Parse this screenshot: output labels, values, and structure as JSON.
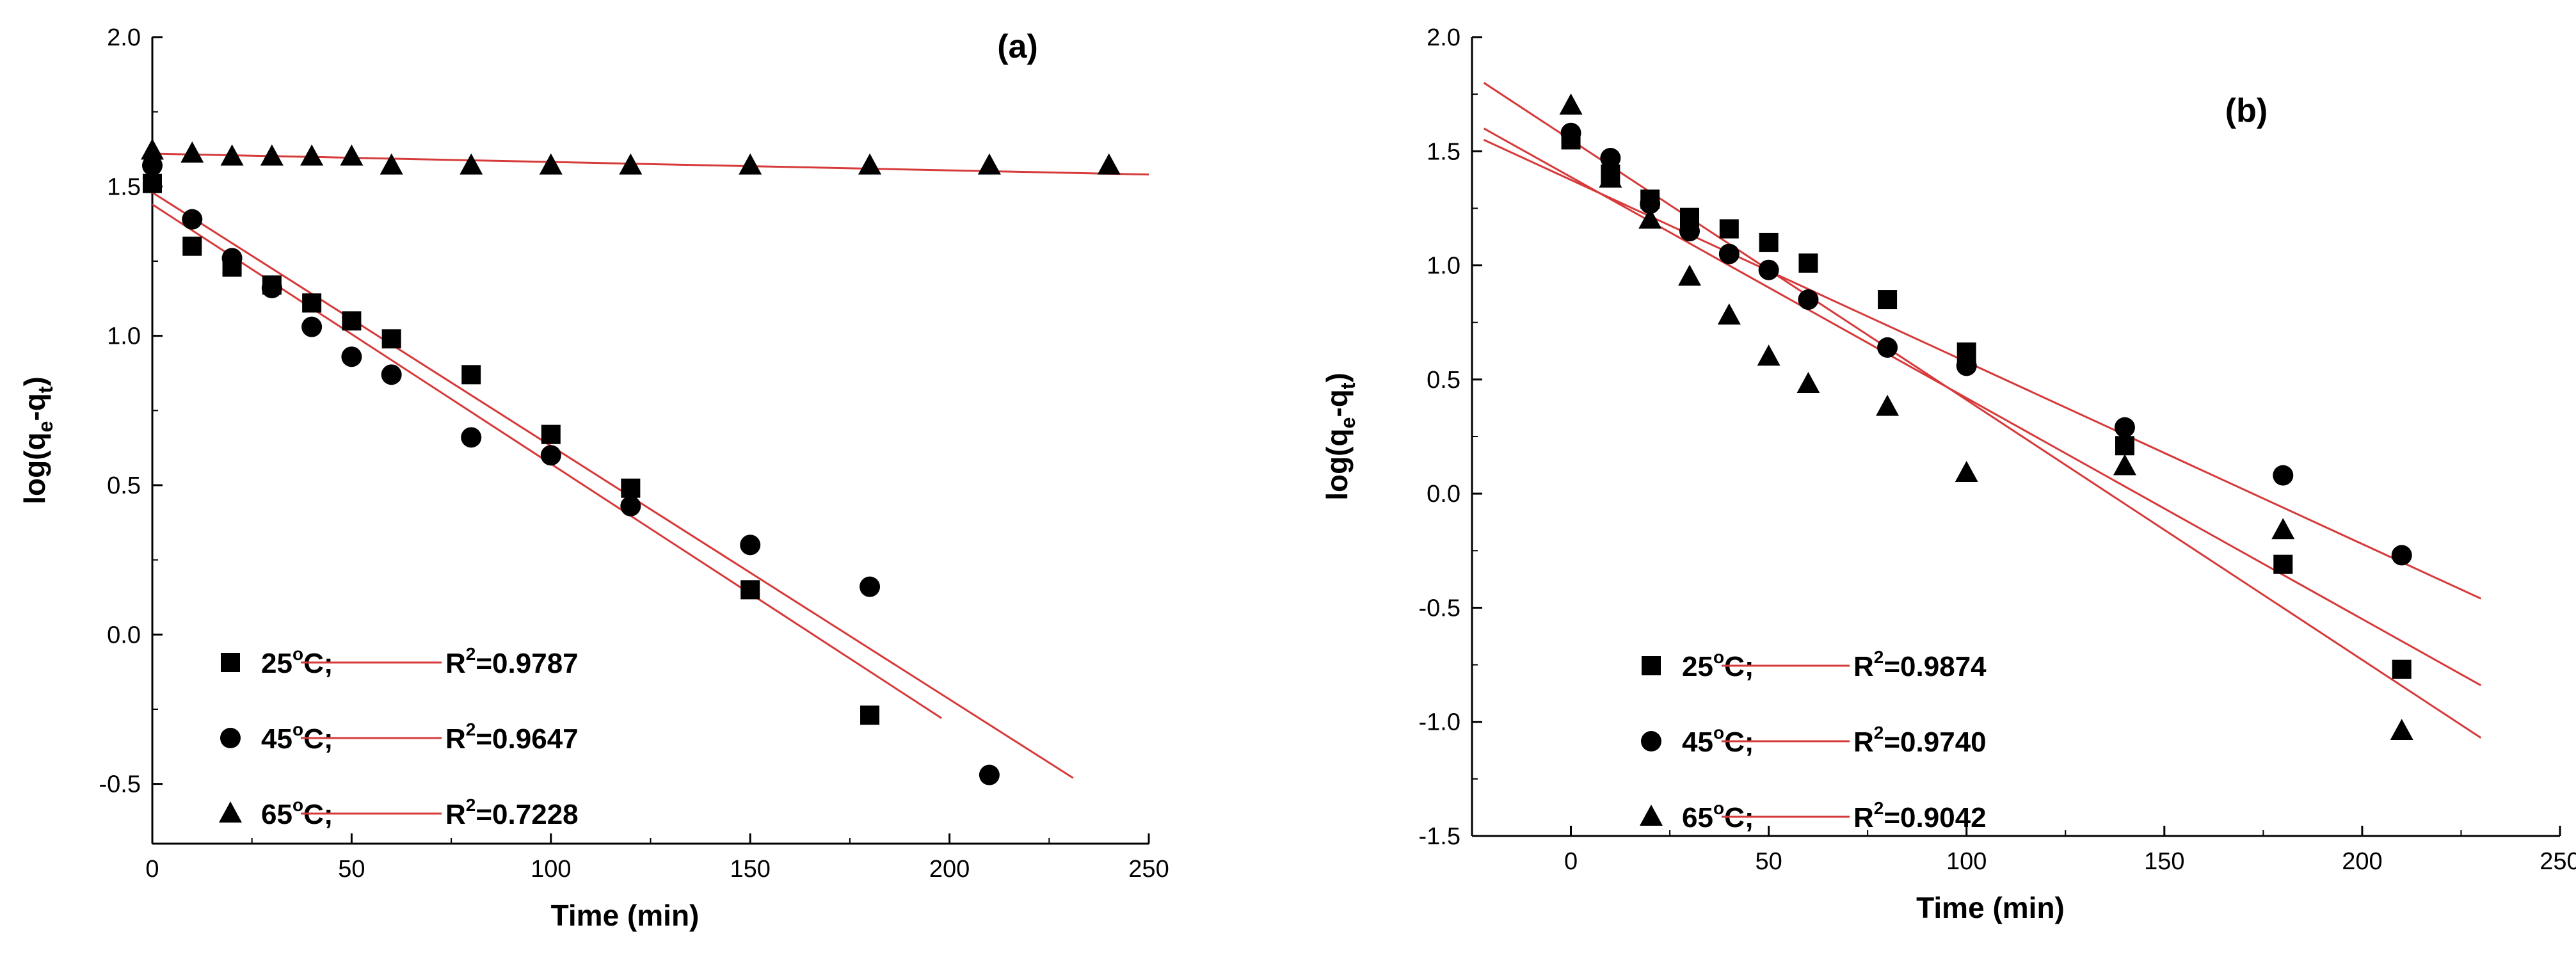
{
  "chart_data": [
    {
      "type": "scatter",
      "panel_label": "(a)",
      "xlabel": "Time (min)",
      "ylabel": "log(q",
      "ylabel_sub1": "e",
      "ylabel_mid": "-q",
      "ylabel_sub2": "t",
      "ylabel_end": ")",
      "xlim": [
        0,
        250
      ],
      "ylim": [
        -0.7,
        2.0
      ],
      "xticks": [
        0,
        50,
        100,
        150,
        200,
        250
      ],
      "xtick_labels": [
        "0",
        "50",
        "100",
        "150",
        "200",
        "250"
      ],
      "yticks": [
        -0.5,
        0.0,
        0.5,
        1.0,
        1.5,
        2.0
      ],
      "ytick_labels": [
        "-0.5",
        "0.0",
        "0.5",
        "1.0",
        "1.5",
        "2.0"
      ],
      "legend_position": "bottom-left",
      "series": [
        {
          "name": "25°C",
          "marker": "square",
          "temp": "25",
          "r2_label": "R",
          "r2_value": "=0.9787",
          "points": [
            [
              0,
              1.51
            ],
            [
              10,
              1.3
            ],
            [
              20,
              1.23
            ],
            [
              30,
              1.17
            ],
            [
              40,
              1.11
            ],
            [
              50,
              1.05
            ],
            [
              60,
              0.99
            ],
            [
              80,
              0.87
            ],
            [
              100,
              0.67
            ],
            [
              120,
              0.49
            ],
            [
              150,
              0.15
            ],
            [
              180,
              -0.27
            ]
          ],
          "fit": {
            "x": [
              0,
              198
            ],
            "y": [
              1.44,
              -0.28
            ]
          }
        },
        {
          "name": "45°C",
          "marker": "circle",
          "temp": "45",
          "r2_label": "R",
          "r2_value": "=0.9647",
          "points": [
            [
              0,
              1.57
            ],
            [
              10,
              1.39
            ],
            [
              20,
              1.26
            ],
            [
              30,
              1.16
            ],
            [
              40,
              1.03
            ],
            [
              50,
              0.93
            ],
            [
              60,
              0.87
            ],
            [
              80,
              0.66
            ],
            [
              100,
              0.6
            ],
            [
              120,
              0.43
            ],
            [
              150,
              0.3
            ],
            [
              180,
              0.16
            ],
            [
              210,
              -0.47
            ]
          ],
          "fit": {
            "x": [
              0,
              231
            ],
            "y": [
              1.48,
              -0.48
            ]
          }
        },
        {
          "name": "65°C",
          "marker": "triangle",
          "temp": "65",
          "r2_label": "R",
          "r2_value": "=0.7228",
          "points": [
            [
              0,
              1.62
            ],
            [
              10,
              1.61
            ],
            [
              20,
              1.6
            ],
            [
              30,
              1.6
            ],
            [
              40,
              1.6
            ],
            [
              50,
              1.6
            ],
            [
              60,
              1.57
            ],
            [
              80,
              1.57
            ],
            [
              100,
              1.57
            ],
            [
              120,
              1.57
            ],
            [
              150,
              1.57
            ],
            [
              180,
              1.57
            ],
            [
              210,
              1.57
            ],
            [
              240,
              1.57
            ]
          ],
          "fit": {
            "x": [
              0,
              250
            ],
            "y": [
              1.61,
              1.54
            ]
          }
        }
      ]
    },
    {
      "type": "scatter",
      "panel_label": "(b)",
      "xlabel": "Time (min)",
      "ylabel": "log(q",
      "ylabel_sub1": "e",
      "ylabel_mid": "-q",
      "ylabel_sub2": "t",
      "ylabel_end": ")",
      "xlim": [
        -25,
        250
      ],
      "ylim": [
        -1.5,
        2.0
      ],
      "xticks": [
        0,
        50,
        100,
        150,
        200,
        250
      ],
      "xtick_labels": [
        "0",
        "50",
        "100",
        "150",
        "200",
        "250"
      ],
      "yticks": [
        -1.5,
        -1.0,
        -0.5,
        0.0,
        0.5,
        1.0,
        1.5,
        2.0
      ],
      "ytick_labels": [
        "-1.5",
        "-1.0",
        "-0.5",
        "0.0",
        "0.5",
        "1.0",
        "1.5",
        "2.0"
      ],
      "legend_position": "bottom-left",
      "series": [
        {
          "name": "25°C",
          "marker": "square",
          "temp": "25",
          "r2_label": "R",
          "r2_value": "=0.9874",
          "points": [
            [
              0,
              1.55
            ],
            [
              10,
              1.4
            ],
            [
              20,
              1.29
            ],
            [
              30,
              1.21
            ],
            [
              40,
              1.16
            ],
            [
              50,
              1.1
            ],
            [
              60,
              1.01
            ],
            [
              80,
              0.85
            ],
            [
              100,
              0.62
            ],
            [
              140,
              0.21
            ],
            [
              180,
              -0.31
            ],
            [
              210,
              -0.77
            ]
          ],
          "fit": {
            "x": [
              -22,
              230
            ],
            "y": [
              1.6,
              -0.84
            ]
          }
        },
        {
          "name": "45°C",
          "marker": "circle",
          "temp": "45",
          "r2_label": "R",
          "r2_value": "=0.9740",
          "points": [
            [
              0,
              1.58
            ],
            [
              10,
              1.47
            ],
            [
              20,
              1.27
            ],
            [
              30,
              1.15
            ],
            [
              40,
              1.05
            ],
            [
              50,
              0.98
            ],
            [
              60,
              0.85
            ],
            [
              80,
              0.64
            ],
            [
              100,
              0.56
            ],
            [
              140,
              0.29
            ],
            [
              180,
              0.08
            ],
            [
              210,
              -0.27
            ]
          ],
          "fit": {
            "x": [
              -22,
              230
            ],
            "y": [
              1.55,
              -0.46
            ]
          }
        },
        {
          "name": "65°C",
          "marker": "triangle",
          "temp": "65",
          "r2_label": "R",
          "r2_value": "=0.9042",
          "points": [
            [
              0,
              1.7
            ],
            [
              10,
              1.38
            ],
            [
              20,
              1.2
            ],
            [
              30,
              0.95
            ],
            [
              40,
              0.78
            ],
            [
              50,
              0.6
            ],
            [
              60,
              0.48
            ],
            [
              80,
              0.38
            ],
            [
              100,
              0.09
            ],
            [
              140,
              0.12
            ],
            [
              180,
              -0.16
            ],
            [
              210,
              -1.04
            ]
          ],
          "fit": {
            "x": [
              -22,
              230
            ],
            "y": [
              1.8,
              -1.07
            ]
          }
        }
      ]
    }
  ],
  "colors": {
    "fit_line": "#d63a3a",
    "marker": "#000000",
    "axis": "#000000"
  }
}
